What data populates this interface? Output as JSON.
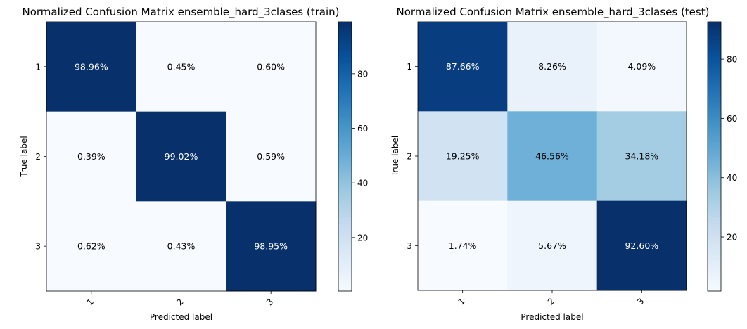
{
  "chart_data": [
    {
      "type": "heatmap",
      "title": "Normalized Confusion Matrix ensemble_hard_3clases (train)",
      "xlabel": "Predicted label",
      "ylabel": "True label",
      "x_categories": [
        "1",
        "2",
        "3"
      ],
      "y_categories": [
        "1",
        "2",
        "3"
      ],
      "values": [
        [
          98.96,
          0.45,
          0.6
        ],
        [
          0.39,
          99.02,
          0.59
        ],
        [
          0.62,
          0.43,
          98.95
        ]
      ],
      "cell_labels": [
        [
          "98.96%",
          "0.45%",
          "0.60%"
        ],
        [
          "0.39%",
          "99.02%",
          "0.59%"
        ],
        [
          "0.62%",
          "0.43%",
          "98.95%"
        ]
      ],
      "colormap": "Blues",
      "colorbar_ticks": [
        "20",
        "40",
        "60",
        "80"
      ],
      "colorbar_range": [
        0.39,
        99.02
      ]
    },
    {
      "type": "heatmap",
      "title": "Normalized Confusion Matrix ensemble_hard_3clases (test)",
      "xlabel": "Predicted label",
      "ylabel": "True label",
      "x_categories": [
        "1",
        "2",
        "3"
      ],
      "y_categories": [
        "1",
        "2",
        "3"
      ],
      "values": [
        [
          87.66,
          8.26,
          4.09
        ],
        [
          19.25,
          46.56,
          34.18
        ],
        [
          1.74,
          5.67,
          92.6
        ]
      ],
      "cell_labels": [
        [
          "87.66%",
          "8.26%",
          "4.09%"
        ],
        [
          "19.25%",
          "46.56%",
          "34.18%"
        ],
        [
          "1.74%",
          "5.67%",
          "92.60%"
        ]
      ],
      "colormap": "Blues",
      "colorbar_ticks": [
        "20",
        "40",
        "60",
        "80"
      ],
      "colorbar_range": [
        1.74,
        92.6
      ]
    }
  ]
}
